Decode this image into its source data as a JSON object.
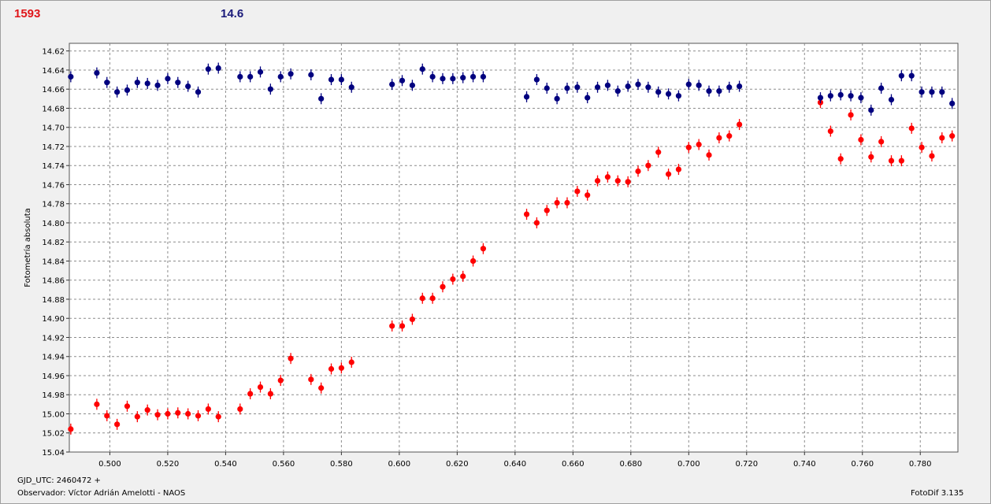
{
  "header": {
    "left_value": "1593",
    "right_value": "14.6"
  },
  "footer": {
    "gjd": "GJD_UTC: 2460472 +",
    "observer": "Observador: Víctor Adrián Amelotti - NAOS",
    "software": "FotoDif 3.135"
  },
  "colors": {
    "series_red": "#ff0000",
    "series_blue": "#00007f",
    "grid": "#8c8c8c"
  },
  "chart_data": {
    "type": "scatter",
    "ylabel": "Fotometría absoluta",
    "xlabel": "",
    "title": "",
    "xlim": [
      0.486,
      0.793
    ],
    "ylim": [
      15.04,
      14.612
    ],
    "y_inverted": true,
    "grid": true,
    "x_ticks": [
      "0.500",
      "0.520",
      "0.540",
      "0.560",
      "0.580",
      "0.600",
      "0.620",
      "0.640",
      "0.660",
      "0.680",
      "0.700",
      "0.720",
      "0.740",
      "0.760",
      "0.780"
    ],
    "y_ticks": [
      "14.62",
      "14.64",
      "14.66",
      "14.68",
      "14.70",
      "14.72",
      "14.74",
      "14.76",
      "14.78",
      "14.80",
      "14.82",
      "14.84",
      "14.86",
      "14.88",
      "14.90",
      "14.92",
      "14.94",
      "14.96",
      "14.98",
      "15.00",
      "15.02",
      "15.04"
    ],
    "series": [
      {
        "color": "#ff0000",
        "points": [
          [
            0.4865,
            15.016
          ],
          [
            0.4955,
            14.99
          ],
          [
            0.499,
            15.002
          ],
          [
            0.5025,
            15.011
          ],
          [
            0.506,
            14.992
          ],
          [
            0.5095,
            15.003
          ],
          [
            0.513,
            14.996
          ],
          [
            0.5165,
            15.001
          ],
          [
            0.52,
            15.0
          ],
          [
            0.5235,
            14.999
          ],
          [
            0.527,
            15.0
          ],
          [
            0.5305,
            15.002
          ],
          [
            0.534,
            14.995
          ],
          [
            0.5375,
            15.003
          ],
          [
            0.545,
            14.995
          ],
          [
            0.5485,
            14.979
          ],
          [
            0.552,
            14.972
          ],
          [
            0.5555,
            14.979
          ],
          [
            0.559,
            14.965
          ],
          [
            0.5625,
            14.942
          ],
          [
            0.5695,
            14.964
          ],
          [
            0.573,
            14.973
          ],
          [
            0.5765,
            14.953
          ],
          [
            0.58,
            14.952
          ],
          [
            0.5835,
            14.946
          ],
          [
            0.5975,
            14.908
          ],
          [
            0.601,
            14.908
          ],
          [
            0.6045,
            14.901
          ],
          [
            0.608,
            14.879
          ],
          [
            0.6115,
            14.879
          ],
          [
            0.615,
            14.867
          ],
          [
            0.6185,
            14.859
          ],
          [
            0.622,
            14.856
          ],
          [
            0.6255,
            14.84
          ],
          [
            0.629,
            14.827
          ],
          [
            0.644,
            14.791
          ],
          [
            0.6475,
            14.8
          ],
          [
            0.651,
            14.787
          ],
          [
            0.6545,
            14.779
          ],
          [
            0.658,
            14.779
          ],
          [
            0.6615,
            14.767
          ],
          [
            0.665,
            14.771
          ],
          [
            0.6685,
            14.756
          ],
          [
            0.672,
            14.752
          ],
          [
            0.6755,
            14.756
          ],
          [
            0.679,
            14.757
          ],
          [
            0.6825,
            14.746
          ],
          [
            0.686,
            14.74
          ],
          [
            0.6895,
            14.726
          ],
          [
            0.693,
            14.749
          ],
          [
            0.6965,
            14.744
          ],
          [
            0.7,
            14.721
          ],
          [
            0.7035,
            14.718
          ],
          [
            0.707,
            14.729
          ],
          [
            0.7105,
            14.711
          ],
          [
            0.714,
            14.709
          ],
          [
            0.7175,
            14.697
          ],
          [
            0.7455,
            14.674
          ],
          [
            0.749,
            14.704
          ],
          [
            0.7525,
            14.733
          ],
          [
            0.756,
            14.687
          ],
          [
            0.7595,
            14.713
          ],
          [
            0.763,
            14.731
          ],
          [
            0.7665,
            14.715
          ],
          [
            0.77,
            14.735
          ],
          [
            0.7735,
            14.735
          ],
          [
            0.777,
            14.701
          ],
          [
            0.7805,
            14.721
          ],
          [
            0.784,
            14.73
          ],
          [
            0.7875,
            14.711
          ],
          [
            0.791,
            14.709
          ]
        ]
      },
      {
        "color": "#00007f",
        "points": [
          [
            0.4865,
            14.647
          ],
          [
            0.4955,
            14.643
          ],
          [
            0.499,
            14.653
          ],
          [
            0.5025,
            14.663
          ],
          [
            0.506,
            14.661
          ],
          [
            0.5095,
            14.653
          ],
          [
            0.513,
            14.654
          ],
          [
            0.5165,
            14.656
          ],
          [
            0.52,
            14.649
          ],
          [
            0.5235,
            14.653
          ],
          [
            0.527,
            14.657
          ],
          [
            0.5305,
            14.663
          ],
          [
            0.534,
            14.639
          ],
          [
            0.5375,
            14.638
          ],
          [
            0.545,
            14.647
          ],
          [
            0.5485,
            14.647
          ],
          [
            0.552,
            14.642
          ],
          [
            0.5555,
            14.66
          ],
          [
            0.559,
            14.647
          ],
          [
            0.5625,
            14.644
          ],
          [
            0.5695,
            14.645
          ],
          [
            0.573,
            14.67
          ],
          [
            0.5765,
            14.65
          ],
          [
            0.58,
            14.65
          ],
          [
            0.5835,
            14.658
          ],
          [
            0.5975,
            14.655
          ],
          [
            0.601,
            14.651
          ],
          [
            0.6045,
            14.656
          ],
          [
            0.608,
            14.639
          ],
          [
            0.6115,
            14.647
          ],
          [
            0.615,
            14.649
          ],
          [
            0.6185,
            14.649
          ],
          [
            0.622,
            14.648
          ],
          [
            0.6255,
            14.647
          ],
          [
            0.629,
            14.647
          ],
          [
            0.644,
            14.668
          ],
          [
            0.6475,
            14.65
          ],
          [
            0.651,
            14.659
          ],
          [
            0.6545,
            14.67
          ],
          [
            0.658,
            14.659
          ],
          [
            0.6615,
            14.658
          ],
          [
            0.665,
            14.669
          ],
          [
            0.6685,
            14.658
          ],
          [
            0.672,
            14.656
          ],
          [
            0.6755,
            14.662
          ],
          [
            0.679,
            14.657
          ],
          [
            0.6825,
            14.655
          ],
          [
            0.686,
            14.658
          ],
          [
            0.6895,
            14.663
          ],
          [
            0.693,
            14.665
          ],
          [
            0.6965,
            14.667
          ],
          [
            0.7,
            14.655
          ],
          [
            0.7035,
            14.656
          ],
          [
            0.707,
            14.662
          ],
          [
            0.7105,
            14.662
          ],
          [
            0.714,
            14.658
          ],
          [
            0.7175,
            14.657
          ],
          [
            0.7455,
            14.669
          ],
          [
            0.749,
            14.667
          ],
          [
            0.7525,
            14.666
          ],
          [
            0.756,
            14.667
          ],
          [
            0.7595,
            14.669
          ],
          [
            0.763,
            14.682
          ],
          [
            0.7665,
            14.659
          ],
          [
            0.77,
            14.671
          ],
          [
            0.7735,
            14.646
          ],
          [
            0.777,
            14.646
          ],
          [
            0.7805,
            14.663
          ],
          [
            0.784,
            14.663
          ],
          [
            0.7875,
            14.663
          ],
          [
            0.791,
            14.675
          ]
        ]
      }
    ]
  }
}
